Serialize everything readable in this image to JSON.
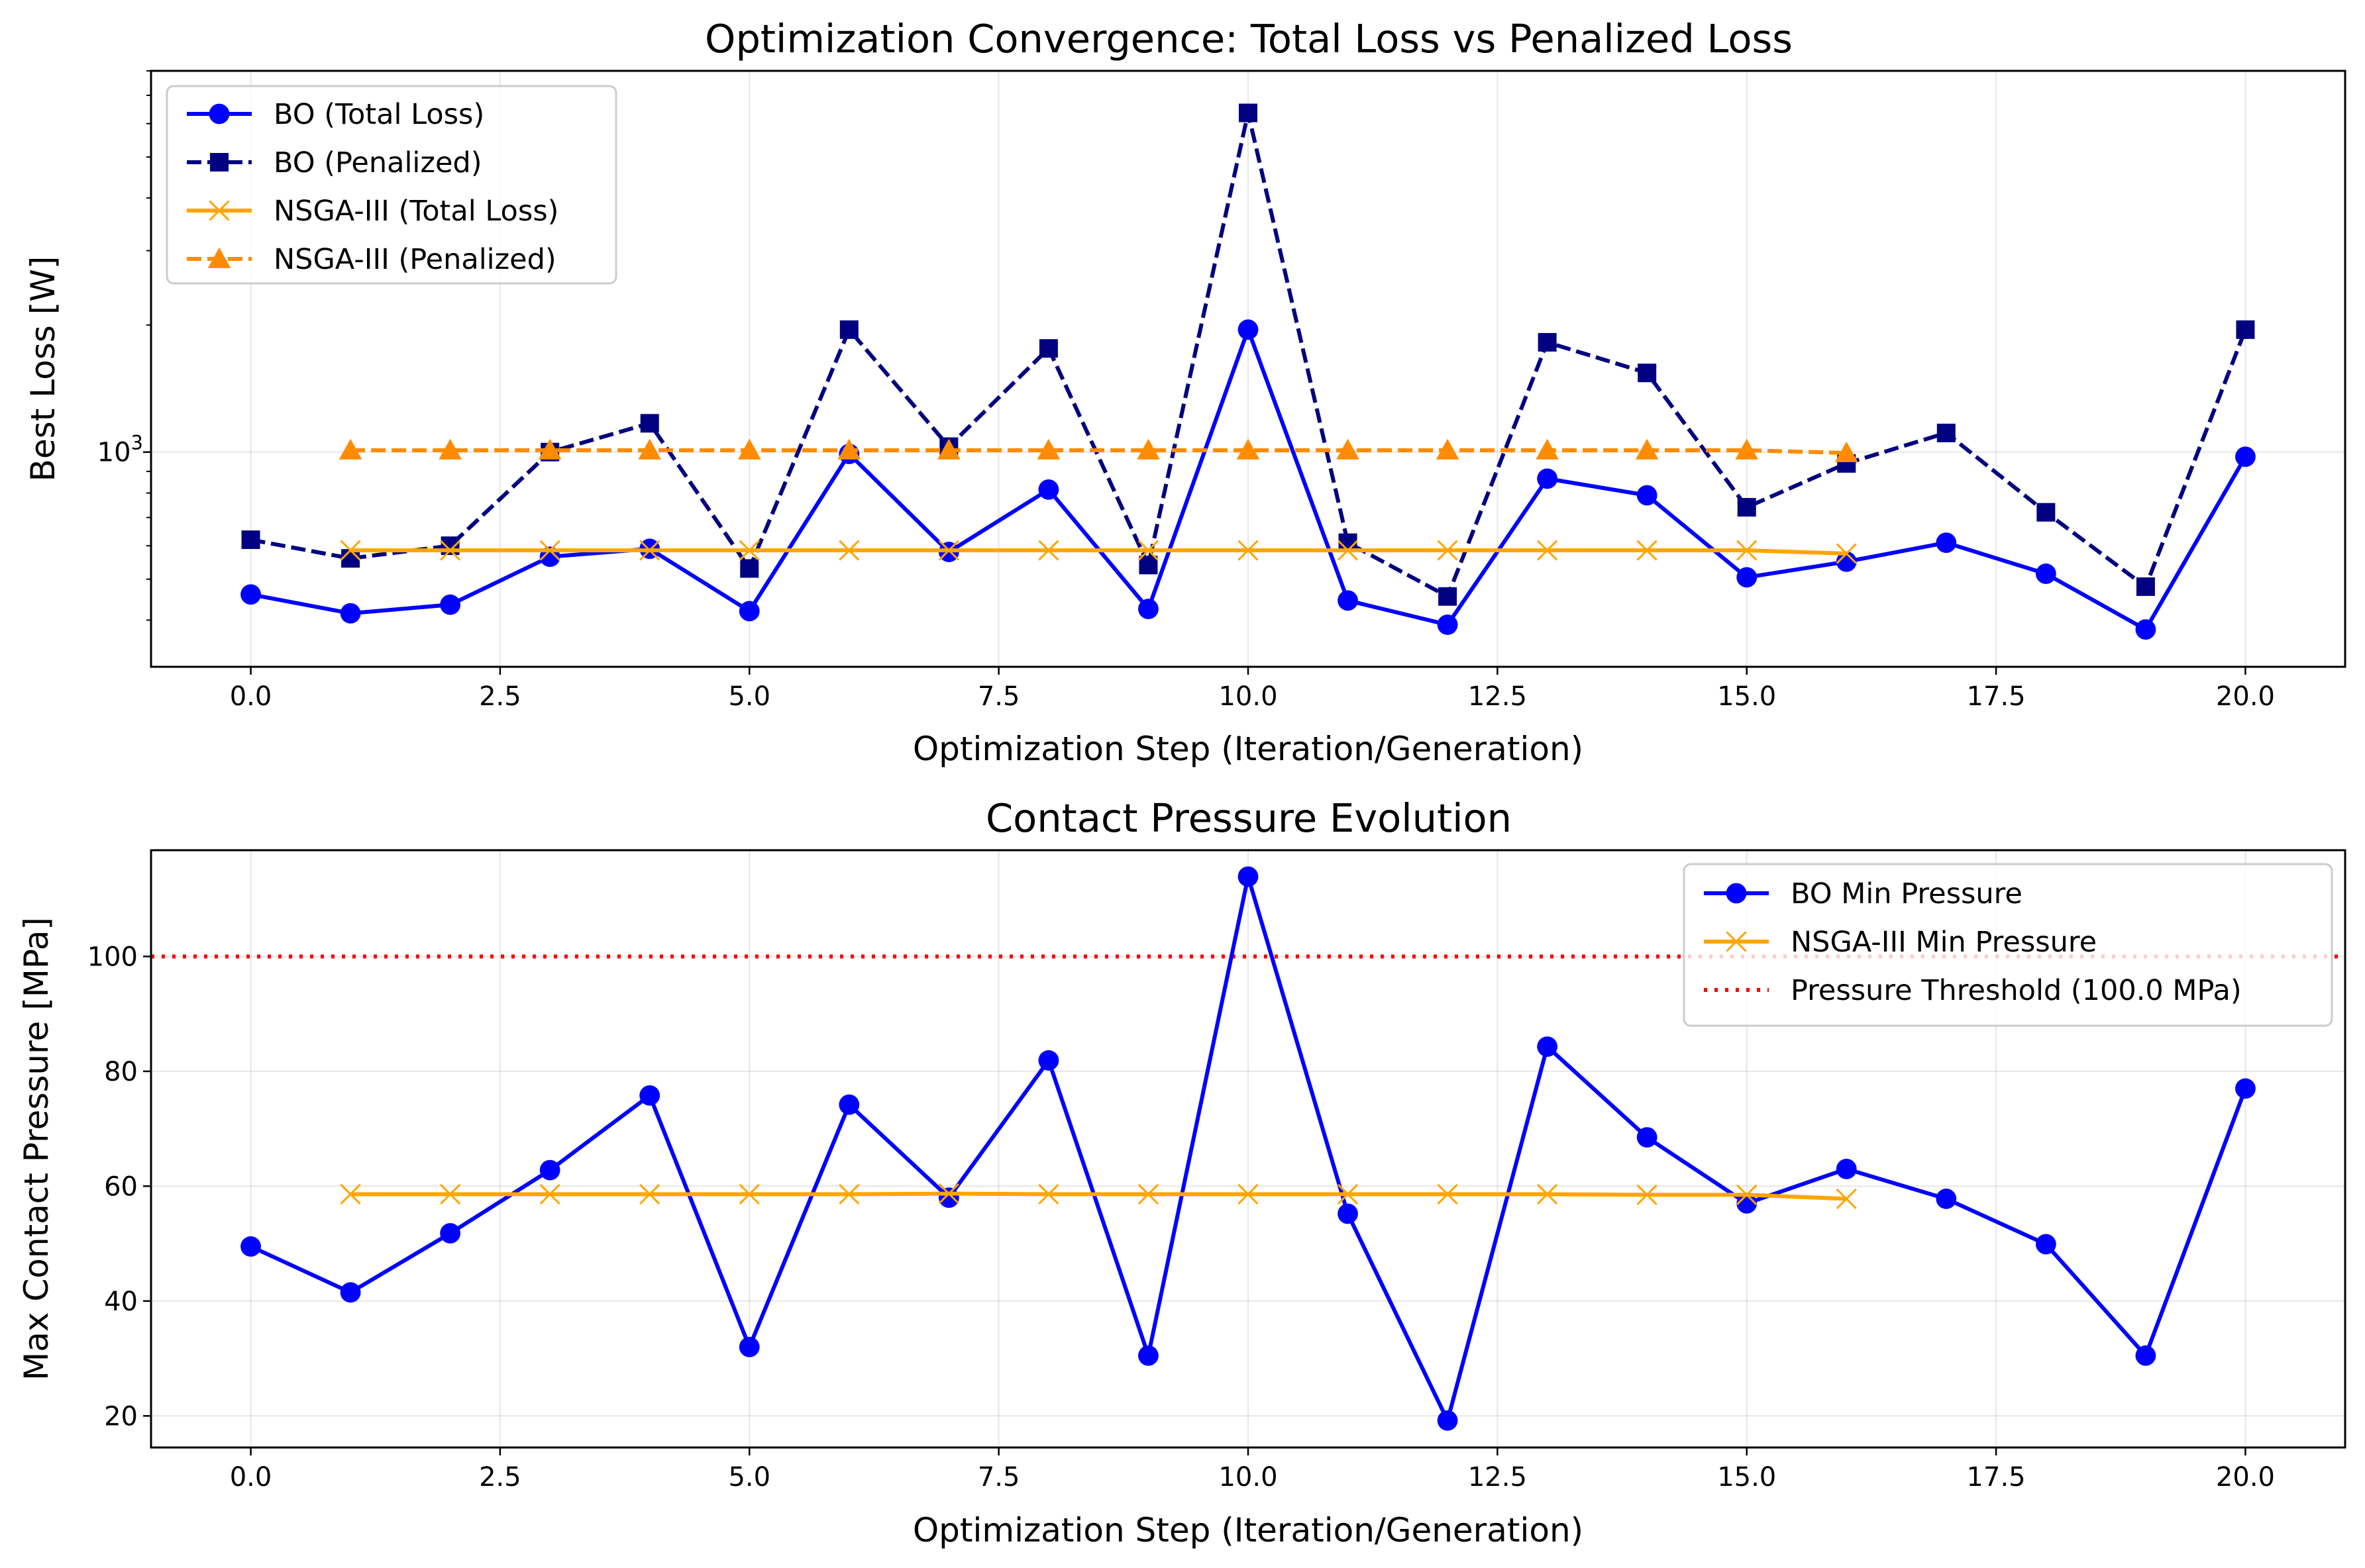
{
  "chart_data": [
    {
      "type": "line",
      "title": "Optimization Convergence: Total Loss vs Penalized Loss",
      "xlabel": "Optimization Step (Iteration/Generation)",
      "ylabel": "Best Loss [W]",
      "xlim": [
        -1,
        21
      ],
      "ylim": [
        310,
        8000
      ],
      "yscale": "log",
      "grid": true,
      "legend_position": "upper-left",
      "x_ticks": [
        0,
        2.5,
        5,
        7.5,
        10,
        12.5,
        15,
        17.5,
        20
      ],
      "x_tick_labels": [
        "0.0",
        "2.5",
        "5.0",
        "7.5",
        "10.0",
        "12.5",
        "15.0",
        "17.5",
        "20.0"
      ],
      "y_ticks": [
        1000
      ],
      "y_tick_labels": [
        "10"
      ],
      "y_tick_exponent": "3",
      "series": [
        {
          "name": "BO (Total Loss)",
          "color": "#0000ff",
          "linestyle": "solid",
          "marker": "circle",
          "x": [
            0,
            1,
            2,
            3,
            4,
            5,
            6,
            7,
            8,
            9,
            10,
            11,
            12,
            13,
            14,
            15,
            16,
            17,
            18,
            19,
            20
          ],
          "values": [
            460,
            415,
            435,
            565,
            590,
            420,
            990,
            580,
            815,
            425,
            1950,
            445,
            390,
            865,
            790,
            505,
            550,
            610,
            515,
            380,
            975
          ]
        },
        {
          "name": "BO (Penalized)",
          "color": "#000080",
          "linestyle": "dashed",
          "marker": "square",
          "x": [
            0,
            1,
            2,
            3,
            4,
            5,
            6,
            7,
            8,
            9,
            10,
            11,
            12,
            13,
            14,
            15,
            16,
            17,
            18,
            19,
            20
          ],
          "values": [
            620,
            560,
            600,
            1000,
            1170,
            530,
            1950,
            1030,
            1760,
            540,
            6360,
            610,
            455,
            1820,
            1540,
            740,
            940,
            1110,
            720,
            480,
            1950
          ]
        },
        {
          "name": "NSGA-III (Total Loss)",
          "color": "#ffa500",
          "linestyle": "solid",
          "marker": "x",
          "x": [
            1,
            2,
            3,
            4,
            5,
            6,
            7,
            8,
            9,
            10,
            11,
            12,
            13,
            14,
            15,
            16
          ],
          "values": [
            585,
            585,
            585,
            585,
            585,
            585,
            585,
            585,
            585,
            585,
            585,
            585,
            585,
            585,
            585,
            575
          ]
        },
        {
          "name": "NSGA-III (Penalized)",
          "color": "#ff8c00",
          "linestyle": "dashed",
          "marker": "triangle",
          "x": [
            1,
            2,
            3,
            4,
            5,
            6,
            7,
            8,
            9,
            10,
            11,
            12,
            13,
            14,
            15,
            16
          ],
          "values": [
            1010,
            1010,
            1010,
            1010,
            1010,
            1010,
            1010,
            1010,
            1010,
            1010,
            1010,
            1010,
            1010,
            1010,
            1010,
            995
          ]
        }
      ]
    },
    {
      "type": "line",
      "title": "Contact Pressure Evolution",
      "xlabel": "Optimization Step (Iteration/Generation)",
      "ylabel": "Max Contact Pressure [MPa]",
      "xlim": [
        -1,
        21
      ],
      "ylim": [
        14.5,
        118.5
      ],
      "grid": true,
      "legend_position": "upper-right",
      "x_ticks": [
        0,
        2.5,
        5,
        7.5,
        10,
        12.5,
        15,
        17.5,
        20
      ],
      "x_tick_labels": [
        "0.0",
        "2.5",
        "5.0",
        "7.5",
        "10.0",
        "12.5",
        "15.0",
        "17.5",
        "20.0"
      ],
      "y_ticks": [
        20,
        40,
        60,
        80,
        100
      ],
      "y_tick_labels": [
        "20",
        "40",
        "60",
        "80",
        "100"
      ],
      "series": [
        {
          "name": "BO Min Pressure",
          "color": "#0000ff",
          "linestyle": "solid",
          "marker": "circle",
          "x": [
            0,
            1,
            2,
            3,
            4,
            5,
            6,
            7,
            8,
            9,
            10,
            11,
            12,
            13,
            14,
            15,
            16,
            17,
            18,
            19,
            20
          ],
          "values": [
            49.5,
            41.5,
            51.8,
            62.8,
            75.8,
            32,
            74.2,
            58,
            81.9,
            30.5,
            113.9,
            55.2,
            19.2,
            84.3,
            68.5,
            57,
            63,
            57.8,
            49.9,
            30.5,
            77
          ]
        },
        {
          "name": "NSGA-III Min Pressure",
          "color": "#ffa500",
          "linestyle": "solid",
          "marker": "x",
          "x": [
            1,
            2,
            3,
            4,
            5,
            6,
            7,
            8,
            9,
            10,
            11,
            12,
            13,
            14,
            15,
            16
          ],
          "values": [
            58.6,
            58.6,
            58.6,
            58.6,
            58.6,
            58.6,
            58.7,
            58.6,
            58.6,
            58.6,
            58.6,
            58.6,
            58.6,
            58.5,
            58.5,
            57.8
          ]
        }
      ],
      "threshold": {
        "name": "Pressure Threshold (100.0 MPa)",
        "value": 100,
        "color": "#ff0000",
        "linestyle": "dotted"
      }
    }
  ]
}
